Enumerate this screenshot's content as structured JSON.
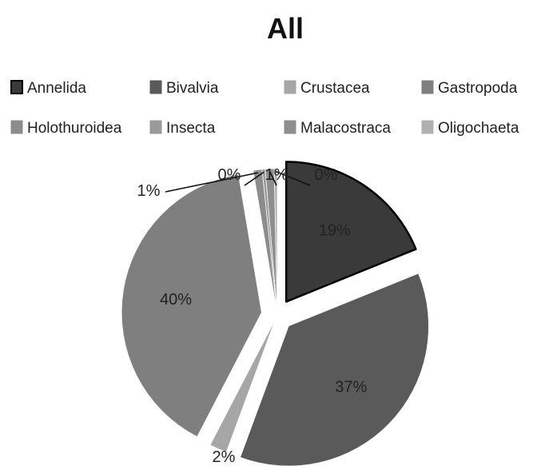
{
  "chart_data": {
    "type": "pie",
    "title": "All",
    "legend_position": "top",
    "categories": [
      "Annelida",
      "Bivalvia",
      "Crustacea",
      "Gastropoda",
      "Holothuroidea",
      "Insecta",
      "Malacostraca",
      "Oligochaeta"
    ],
    "values": [
      19,
      37,
      2,
      40,
      1,
      0,
      1,
      0
    ],
    "labels": [
      "19%",
      "37%",
      "2%",
      "40%",
      "1%",
      "0%",
      "1%",
      "0%"
    ],
    "colors": [
      "#3a3a3a",
      "#5a5a5a",
      "#a6a6a6",
      "#7f7f7f",
      "#8c8c8c",
      "#9a9a9a",
      "#8e8e8e",
      "#b0b0b0"
    ]
  }
}
